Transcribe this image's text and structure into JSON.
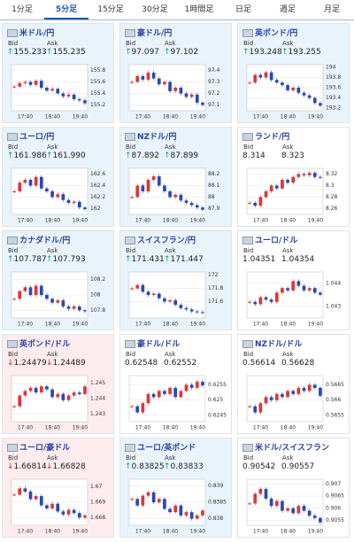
{
  "tabs": [
    "1分足",
    "5分足",
    "15分足",
    "30分足",
    "1時間足",
    "日足",
    "週足",
    "月足"
  ],
  "active_tab": 1,
  "bid_label": "Bid",
  "ask_label": "Ask",
  "time_labels": [
    "17:40",
    "18:40",
    "19:40"
  ],
  "pairs": [
    {
      "name": "米ドル/円",
      "bid_arrow": "↑",
      "bid": "155.233",
      "ask_arrow": "↑",
      "ask": "155.235",
      "ylim": [
        155.1,
        155.9
      ],
      "yticks": [
        155.8,
        155.6,
        155.4,
        155.2
      ],
      "closes": [
        155.52,
        155.58,
        155.6,
        155.55,
        155.62,
        155.5,
        155.45,
        155.48,
        155.4,
        155.35,
        155.38,
        155.3,
        155.28,
        155.23
      ]
    },
    {
      "name": "豪ドル/円",
      "bid_arrow": "↑",
      "bid": "97.097",
      "ask_arrow": "↑",
      "ask": "97.102",
      "ylim": [
        97.05,
        97.45
      ],
      "yticks": [
        97.4,
        97.3,
        97.2,
        97.1
      ],
      "closes": [
        97.3,
        97.35,
        97.32,
        97.38,
        97.33,
        97.28,
        97.3,
        97.22,
        97.25,
        97.2,
        97.17,
        97.19,
        97.12,
        97.1
      ]
    },
    {
      "name": "英ポンド/円",
      "bid_arrow": "↑",
      "bid": "193.248",
      "ask_arrow": "↑",
      "ask": "193.255",
      "ylim": [
        193.15,
        194.05
      ],
      "yticks": [
        194,
        193.8,
        193.6,
        193.4,
        193.2
      ],
      "closes": [
        193.7,
        193.85,
        193.8,
        193.9,
        193.75,
        193.7,
        193.65,
        193.55,
        193.6,
        193.5,
        193.45,
        193.4,
        193.3,
        193.25
      ]
    },
    {
      "name": "ユーロ/円",
      "bid_arrow": "↑",
      "bid": "161.986",
      "ask_arrow": "↑",
      "ask": "161.990",
      "ylim": [
        161.9,
        162.7
      ],
      "yticks": [
        162.6,
        162.4,
        162.2,
        162
      ],
      "closes": [
        162.3,
        162.45,
        162.5,
        162.4,
        162.55,
        162.35,
        162.3,
        162.2,
        162.25,
        162.15,
        162.1,
        162.12,
        162.02,
        161.99
      ]
    },
    {
      "name": "NZドル/円",
      "bid_arrow": "↑",
      "bid": "87.892",
      "ask_arrow": "↑",
      "ask": "87.899",
      "ylim": [
        87.85,
        88.25
      ],
      "yticks": [
        88.2,
        88.1,
        88,
        87.9
      ],
      "closes": [
        88.0,
        88.1,
        88.05,
        88.15,
        88.18,
        88.1,
        88.05,
        88.0,
        88.02,
        87.97,
        87.95,
        87.93,
        87.91,
        87.89
      ]
    },
    {
      "name": "ランド/円",
      "bid": "8.314",
      "ask": "8.323",
      "ylim": [
        8.25,
        8.33
      ],
      "yticks": [
        8.32,
        8.3,
        8.28,
        8.26
      ],
      "closes": [
        8.27,
        8.265,
        8.28,
        8.29,
        8.3,
        8.295,
        8.31,
        8.305,
        8.315,
        8.32,
        8.318,
        8.322,
        8.315,
        8.314
      ]
    },
    {
      "name": "カナダドル/円",
      "bid_arrow": "↑",
      "bid": "107.787",
      "ask_arrow": "↑",
      "ask": "107.793",
      "ylim": [
        107.7,
        108.3
      ],
      "yticks": [
        108.2,
        108,
        107.8
      ],
      "closes": [
        107.95,
        108.05,
        108.1,
        108.0,
        108.12,
        108.0,
        107.95,
        107.9,
        107.93,
        107.85,
        107.82,
        107.85,
        107.8,
        107.787
      ]
    },
    {
      "name": "スイスフラン/円",
      "bid_arrow": "↑",
      "bid": "171.431",
      "ask_arrow": "↑",
      "ask": "171.447",
      "ylim": [
        171.35,
        172.05
      ],
      "yticks": [
        172,
        171.8,
        171.6
      ],
      "closes": [
        171.8,
        171.85,
        171.75,
        171.7,
        171.72,
        171.65,
        171.6,
        171.62,
        171.55,
        171.5,
        171.48,
        171.45,
        171.44,
        171.431
      ]
    },
    {
      "name": "ユーロ/ドル",
      "bid": "1.04351",
      "ask": "1.04354",
      "ylim": [
        1.0425,
        1.0445
      ],
      "yticks": [
        1.044,
        1.043
      ],
      "closes": [
        1.0432,
        1.0431,
        1.0434,
        1.0433,
        1.0432,
        1.0436,
        1.0438,
        1.0437,
        1.0441,
        1.0439,
        1.0437,
        1.0438,
        1.0436,
        1.04351
      ]
    },
    {
      "name": "英ポンド/ドル",
      "bid_arrow": "↓",
      "bid": "1.24479",
      "ask_arrow": "↓",
      "ask": "1.24489",
      "ylim": [
        1.2425,
        1.2455
      ],
      "yticks": [
        1.245,
        1.244,
        1.243
      ],
      "closes": [
        1.2435,
        1.2442,
        1.2445,
        1.2447,
        1.2444,
        1.2448,
        1.2446,
        1.2441,
        1.2443,
        1.2439,
        1.2442,
        1.2444,
        1.2443,
        1.24479
      ]
    },
    {
      "name": "豪ドル/ドル",
      "bid": "0.62548",
      "ask": "0.62552",
      "ylim": [
        0.6243,
        0.6258
      ],
      "yticks": [
        0.6255,
        0.625,
        0.6245
      ],
      "closes": [
        0.6248,
        0.6246,
        0.6249,
        0.6252,
        0.6251,
        0.6253,
        0.6252,
        0.6254,
        0.6251,
        0.6253,
        0.6255,
        0.6254,
        0.6256,
        0.62548
      ]
    },
    {
      "name": "NZドル/ドル",
      "bid": "0.56614",
      "ask": "0.56628",
      "ylim": [
        0.5653,
        0.5668
      ],
      "yticks": [
        0.5665,
        0.566,
        0.5655
      ],
      "closes": [
        0.5658,
        0.5656,
        0.5659,
        0.5661,
        0.566,
        0.5662,
        0.5661,
        0.5663,
        0.5662,
        0.5664,
        0.5663,
        0.5665,
        0.5664,
        0.56614
      ]
    },
    {
      "name": "ユーロ/豪ドル",
      "bid_arrow": "↓",
      "bid": "1.66814",
      "ask_arrow": "↓",
      "ask": "1.66828",
      "ylim": [
        1.6675,
        1.6705
      ],
      "yticks": [
        1.67,
        1.669,
        1.668
      ],
      "closes": [
        1.6695,
        1.6699,
        1.6697,
        1.6692,
        1.6694,
        1.6688,
        1.6686,
        1.6689,
        1.6684,
        1.6682,
        1.6685,
        1.6683,
        1.668,
        1.66814
      ]
    },
    {
      "name": "ユーロ/英ポンド",
      "bid_arrow": "↑",
      "bid": "0.83825",
      "ask_arrow": "↑",
      "ask": "0.83833",
      "ylim": [
        0.8378,
        0.8392
      ],
      "yticks": [
        0.839,
        0.8385,
        0.838
      ],
      "closes": [
        0.8386,
        0.8384,
        0.8387,
        0.8388,
        0.8385,
        0.8386,
        0.8383,
        0.8382,
        0.8384,
        0.8381,
        0.8382,
        0.838,
        0.8381,
        0.83825
      ]
    },
    {
      "name": "米ドル/スイスフラン",
      "bid": "0.90542",
      "ask": "0.90557",
      "ylim": [
        0.9053,
        0.9072
      ],
      "yticks": [
        0.907,
        0.9065,
        0.906,
        0.9055
      ],
      "closes": [
        0.9062,
        0.9066,
        0.9068,
        0.9064,
        0.9061,
        0.9063,
        0.9059,
        0.906,
        0.9058,
        0.9061,
        0.9059,
        0.9057,
        0.9056,
        0.90542
      ]
    }
  ]
}
